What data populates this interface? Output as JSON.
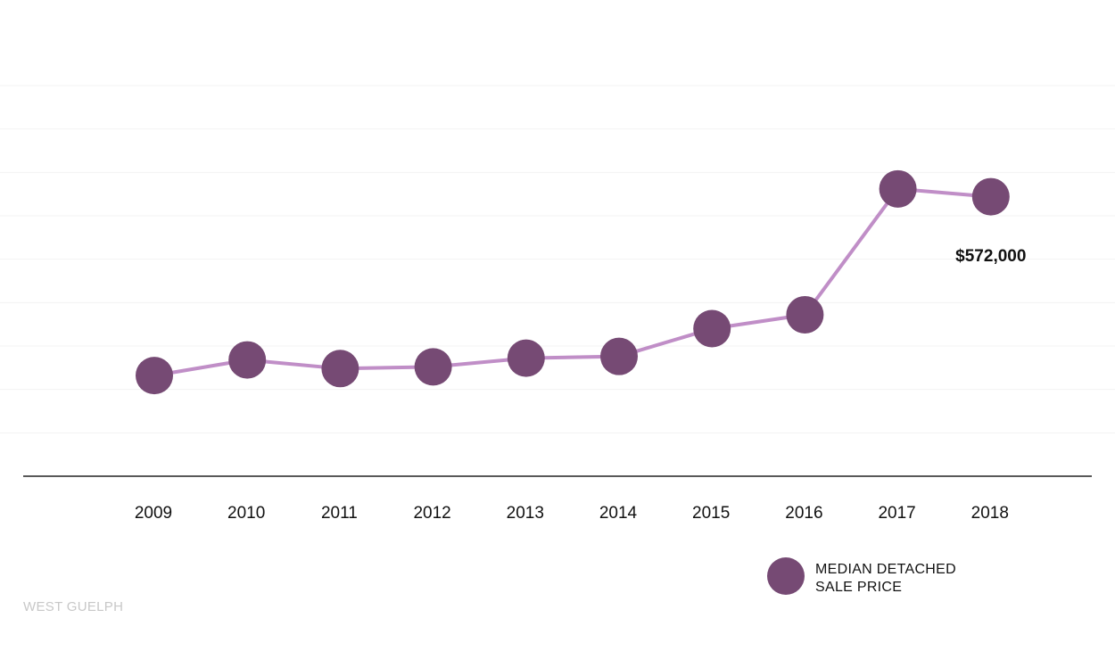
{
  "chart_data": {
    "type": "line",
    "categories": [
      "2009",
      "2010",
      "2011",
      "2012",
      "2013",
      "2014",
      "2015",
      "2016",
      "2017",
      "2018"
    ],
    "series": [
      {
        "name": "MEDIAN DETACHED SALE PRICE",
        "values": [
          366000,
          384000,
          374000,
          376000,
          386000,
          388000,
          420000,
          436000,
          581000,
          572000
        ]
      }
    ],
    "data_labels": [
      {
        "category": "2018",
        "text": "$572,000"
      }
    ],
    "legend": {
      "position": "bottom-right",
      "lines": [
        "MEDIAN DETACHED",
        "SALE PRICE"
      ]
    },
    "grid": true,
    "ylim": [
      250000,
      700000
    ],
    "colors": {
      "line": "#c08ec7",
      "marker": "#764a74",
      "gridline": "#f3f3f3",
      "axis": "#222222"
    }
  },
  "footer": {
    "region_label": "WEST GUELPH"
  }
}
